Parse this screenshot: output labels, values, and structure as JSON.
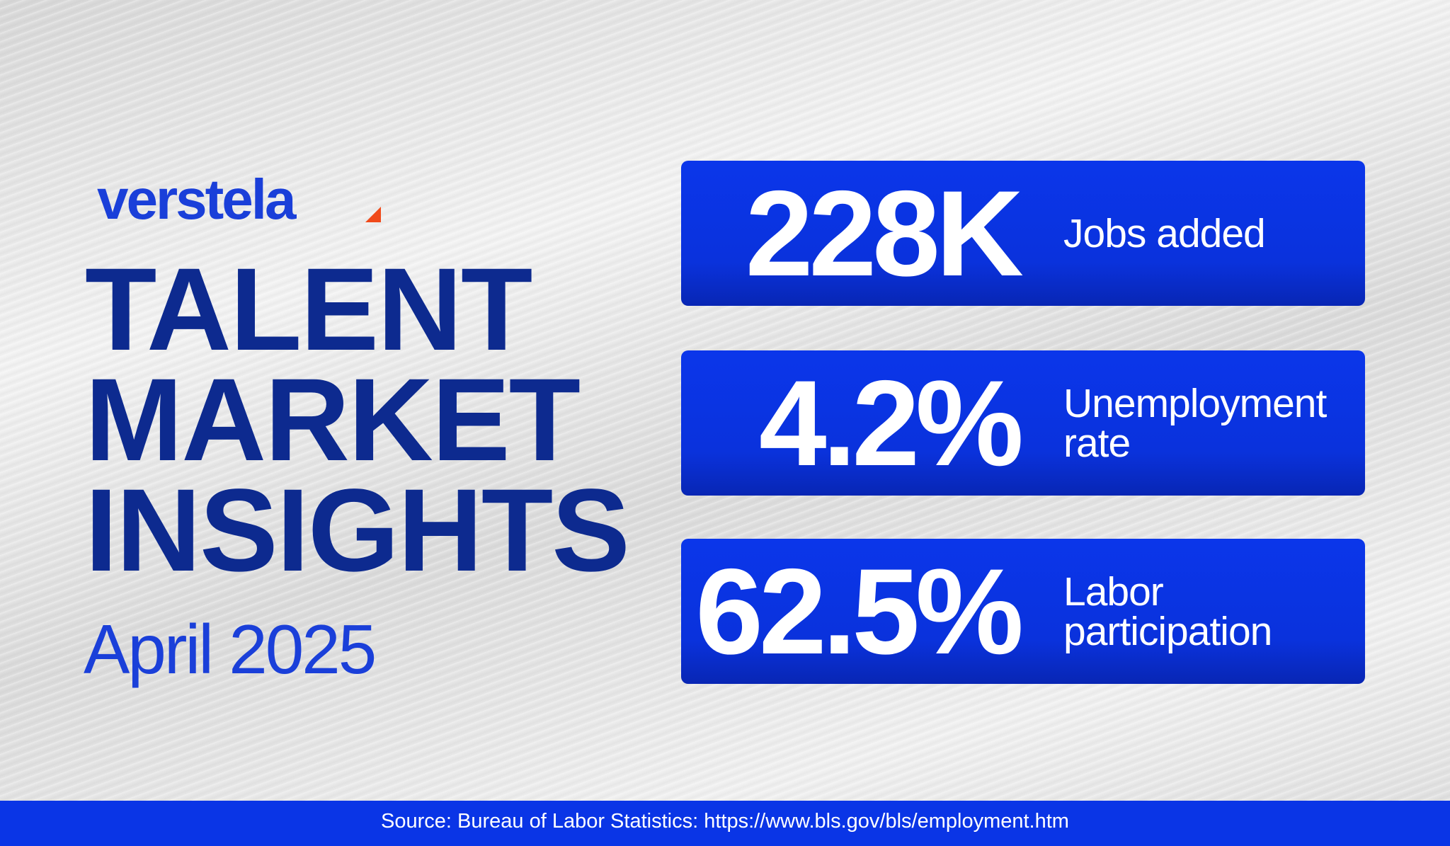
{
  "brand": "verstela",
  "title_lines": [
    "TALENT",
    "MARKET",
    "INSIGHTS"
  ],
  "date": "April 2025",
  "stats": [
    {
      "value": "228K",
      "label": "Jobs added"
    },
    {
      "value": "4.2%",
      "label": "Unemployment rate"
    },
    {
      "value": "62.5%",
      "label": "Labor participation"
    }
  ],
  "source": "Source: Bureau of Labor Statistics: https://www.bls.gov/bls/employment.htm"
}
